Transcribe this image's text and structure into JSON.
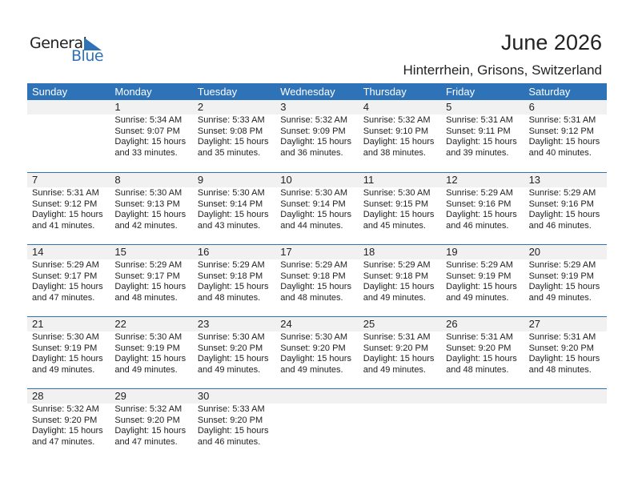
{
  "logo": {
    "word1": "General",
    "word2": "Blue"
  },
  "title": "June 2026",
  "location": "Hinterrhein, Grisons, Switzerland",
  "weekdays": [
    "Sunday",
    "Monday",
    "Tuesday",
    "Wednesday",
    "Thursday",
    "Friday",
    "Saturday"
  ],
  "first_weekday_index": 1,
  "days": [
    {
      "day": "1",
      "sunrise": "Sunrise: 5:34 AM",
      "sunset": "Sunset: 9:07 PM",
      "daylight1": "Daylight: 15 hours",
      "daylight2": "and 33 minutes."
    },
    {
      "day": "2",
      "sunrise": "Sunrise: 5:33 AM",
      "sunset": "Sunset: 9:08 PM",
      "daylight1": "Daylight: 15 hours",
      "daylight2": "and 35 minutes."
    },
    {
      "day": "3",
      "sunrise": "Sunrise: 5:32 AM",
      "sunset": "Sunset: 9:09 PM",
      "daylight1": "Daylight: 15 hours",
      "daylight2": "and 36 minutes."
    },
    {
      "day": "4",
      "sunrise": "Sunrise: 5:32 AM",
      "sunset": "Sunset: 9:10 PM",
      "daylight1": "Daylight: 15 hours",
      "daylight2": "and 38 minutes."
    },
    {
      "day": "5",
      "sunrise": "Sunrise: 5:31 AM",
      "sunset": "Sunset: 9:11 PM",
      "daylight1": "Daylight: 15 hours",
      "daylight2": "and 39 minutes."
    },
    {
      "day": "6",
      "sunrise": "Sunrise: 5:31 AM",
      "sunset": "Sunset: 9:12 PM",
      "daylight1": "Daylight: 15 hours",
      "daylight2": "and 40 minutes."
    },
    {
      "day": "7",
      "sunrise": "Sunrise: 5:31 AM",
      "sunset": "Sunset: 9:12 PM",
      "daylight1": "Daylight: 15 hours",
      "daylight2": "and 41 minutes."
    },
    {
      "day": "8",
      "sunrise": "Sunrise: 5:30 AM",
      "sunset": "Sunset: 9:13 PM",
      "daylight1": "Daylight: 15 hours",
      "daylight2": "and 42 minutes."
    },
    {
      "day": "9",
      "sunrise": "Sunrise: 5:30 AM",
      "sunset": "Sunset: 9:14 PM",
      "daylight1": "Daylight: 15 hours",
      "daylight2": "and 43 minutes."
    },
    {
      "day": "10",
      "sunrise": "Sunrise: 5:30 AM",
      "sunset": "Sunset: 9:14 PM",
      "daylight1": "Daylight: 15 hours",
      "daylight2": "and 44 minutes."
    },
    {
      "day": "11",
      "sunrise": "Sunrise: 5:30 AM",
      "sunset": "Sunset: 9:15 PM",
      "daylight1": "Daylight: 15 hours",
      "daylight2": "and 45 minutes."
    },
    {
      "day": "12",
      "sunrise": "Sunrise: 5:29 AM",
      "sunset": "Sunset: 9:16 PM",
      "daylight1": "Daylight: 15 hours",
      "daylight2": "and 46 minutes."
    },
    {
      "day": "13",
      "sunrise": "Sunrise: 5:29 AM",
      "sunset": "Sunset: 9:16 PM",
      "daylight1": "Daylight: 15 hours",
      "daylight2": "and 46 minutes."
    },
    {
      "day": "14",
      "sunrise": "Sunrise: 5:29 AM",
      "sunset": "Sunset: 9:17 PM",
      "daylight1": "Daylight: 15 hours",
      "daylight2": "and 47 minutes."
    },
    {
      "day": "15",
      "sunrise": "Sunrise: 5:29 AM",
      "sunset": "Sunset: 9:17 PM",
      "daylight1": "Daylight: 15 hours",
      "daylight2": "and 48 minutes."
    },
    {
      "day": "16",
      "sunrise": "Sunrise: 5:29 AM",
      "sunset": "Sunset: 9:18 PM",
      "daylight1": "Daylight: 15 hours",
      "daylight2": "and 48 minutes."
    },
    {
      "day": "17",
      "sunrise": "Sunrise: 5:29 AM",
      "sunset": "Sunset: 9:18 PM",
      "daylight1": "Daylight: 15 hours",
      "daylight2": "and 48 minutes."
    },
    {
      "day": "18",
      "sunrise": "Sunrise: 5:29 AM",
      "sunset": "Sunset: 9:18 PM",
      "daylight1": "Daylight: 15 hours",
      "daylight2": "and 49 minutes."
    },
    {
      "day": "19",
      "sunrise": "Sunrise: 5:29 AM",
      "sunset": "Sunset: 9:19 PM",
      "daylight1": "Daylight: 15 hours",
      "daylight2": "and 49 minutes."
    },
    {
      "day": "20",
      "sunrise": "Sunrise: 5:29 AM",
      "sunset": "Sunset: 9:19 PM",
      "daylight1": "Daylight: 15 hours",
      "daylight2": "and 49 minutes."
    },
    {
      "day": "21",
      "sunrise": "Sunrise: 5:30 AM",
      "sunset": "Sunset: 9:19 PM",
      "daylight1": "Daylight: 15 hours",
      "daylight2": "and 49 minutes."
    },
    {
      "day": "22",
      "sunrise": "Sunrise: 5:30 AM",
      "sunset": "Sunset: 9:19 PM",
      "daylight1": "Daylight: 15 hours",
      "daylight2": "and 49 minutes."
    },
    {
      "day": "23",
      "sunrise": "Sunrise: 5:30 AM",
      "sunset": "Sunset: 9:20 PM",
      "daylight1": "Daylight: 15 hours",
      "daylight2": "and 49 minutes."
    },
    {
      "day": "24",
      "sunrise": "Sunrise: 5:30 AM",
      "sunset": "Sunset: 9:20 PM",
      "daylight1": "Daylight: 15 hours",
      "daylight2": "and 49 minutes."
    },
    {
      "day": "25",
      "sunrise": "Sunrise: 5:31 AM",
      "sunset": "Sunset: 9:20 PM",
      "daylight1": "Daylight: 15 hours",
      "daylight2": "and 49 minutes."
    },
    {
      "day": "26",
      "sunrise": "Sunrise: 5:31 AM",
      "sunset": "Sunset: 9:20 PM",
      "daylight1": "Daylight: 15 hours",
      "daylight2": "and 48 minutes."
    },
    {
      "day": "27",
      "sunrise": "Sunrise: 5:31 AM",
      "sunset": "Sunset: 9:20 PM",
      "daylight1": "Daylight: 15 hours",
      "daylight2": "and 48 minutes."
    },
    {
      "day": "28",
      "sunrise": "Sunrise: 5:32 AM",
      "sunset": "Sunset: 9:20 PM",
      "daylight1": "Daylight: 15 hours",
      "daylight2": "and 47 minutes."
    },
    {
      "day": "29",
      "sunrise": "Sunrise: 5:32 AM",
      "sunset": "Sunset: 9:20 PM",
      "daylight1": "Daylight: 15 hours",
      "daylight2": "and 47 minutes."
    },
    {
      "day": "30",
      "sunrise": "Sunrise: 5:33 AM",
      "sunset": "Sunset: 9:20 PM",
      "daylight1": "Daylight: 15 hours",
      "daylight2": "and 46 minutes."
    }
  ],
  "colors": {
    "header": "#2e72b8",
    "band": "#f1f1f1",
    "logo_blue": "#2e72b8"
  }
}
